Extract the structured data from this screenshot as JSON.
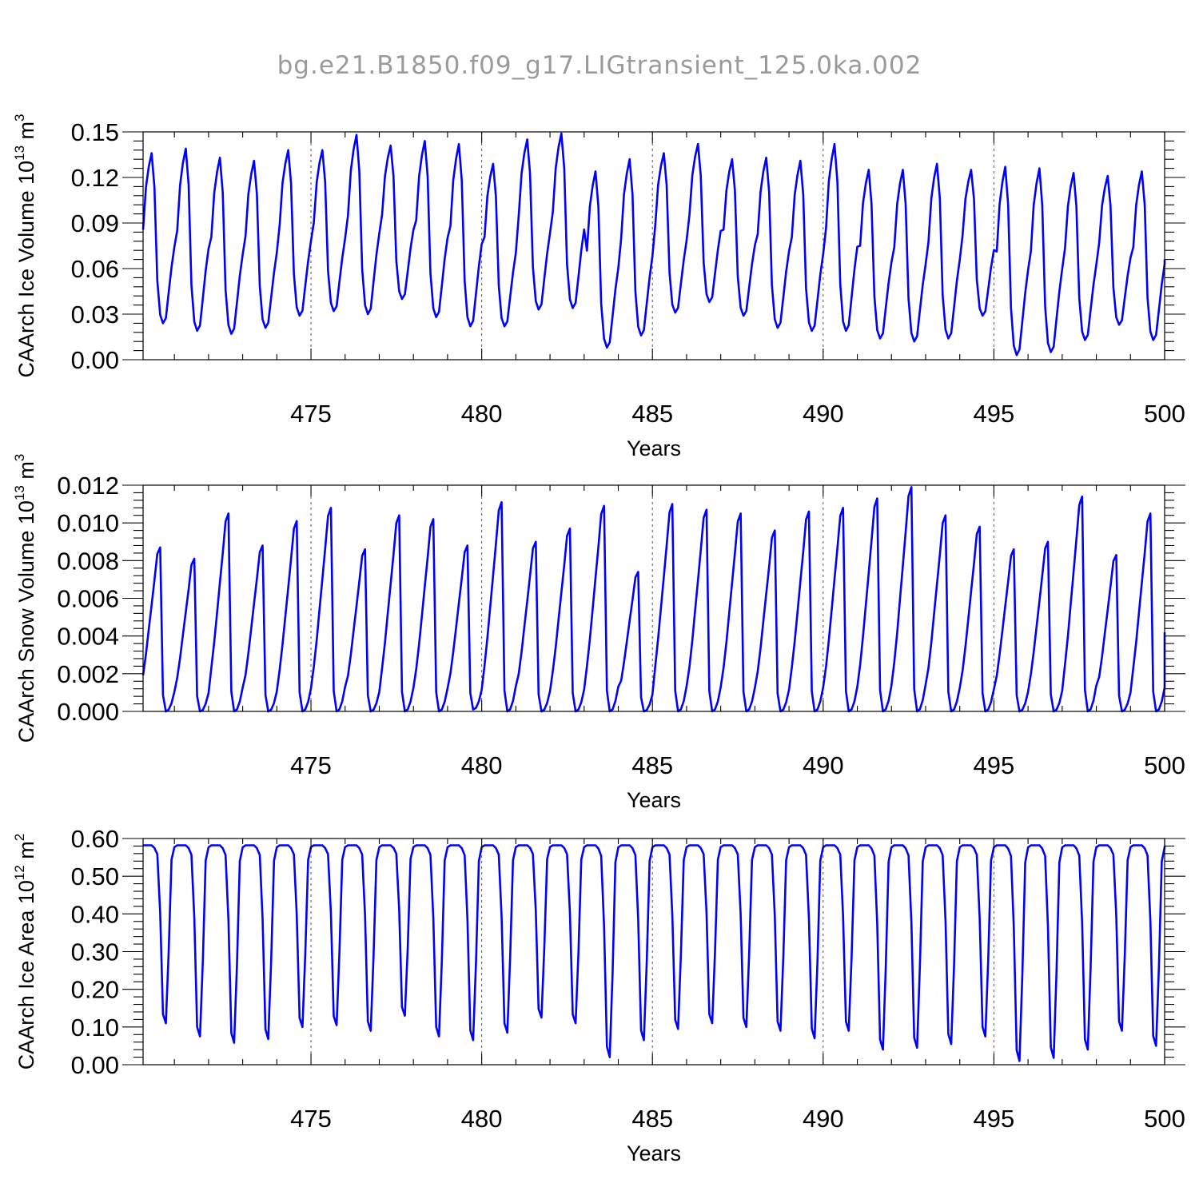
{
  "figure": {
    "title": "bg.e21.B1850.f09_g17.LIGtransient_125.0ka.002"
  },
  "chart_data": [
    {
      "type": "line",
      "id": "ice-volume",
      "title": "",
      "xlabel": "Years",
      "ylabel_main": "CAArch Ice Volume 10",
      "ylabel_sup": "13",
      "ylabel_unit": " m",
      "ylabel_unit_sup": "3",
      "xlim": [
        470.083,
        500.0
      ],
      "ylim": [
        0.0,
        0.15
      ],
      "xticks": [
        475,
        480,
        485,
        490,
        495,
        500
      ],
      "yticks": [
        "0.00",
        "0.03",
        "0.06",
        "0.09",
        "0.12",
        "0.15"
      ],
      "grid_x": "dashed at major ticks",
      "line_color": "#0000ff",
      "series": [
        {
          "name": "",
          "cycle_max": [
            0.136,
            0.139,
            0.133,
            0.131,
            0.138,
            0.138,
            0.148,
            0.141,
            0.144,
            0.142,
            0.129,
            0.145,
            0.149,
            0.124,
            0.132,
            0.136,
            0.142,
            0.132,
            0.133,
            0.131,
            0.142,
            0.125,
            0.125,
            0.129,
            0.125,
            0.127,
            0.126,
            0.123,
            0.121,
            0.124
          ],
          "cycle_min": [
            0.024,
            0.019,
            0.017,
            0.021,
            0.029,
            0.032,
            0.03,
            0.04,
            0.028,
            0.022,
            0.022,
            0.033,
            0.034,
            0.008,
            0.016,
            0.031,
            0.038,
            0.029,
            0.021,
            0.019,
            0.019,
            0.014,
            0.012,
            0.014,
            0.029,
            0.003,
            0.005,
            0.013,
            0.023,
            0.013
          ],
          "end_value": 0.066
        }
      ]
    },
    {
      "type": "line",
      "id": "snow-volume",
      "title": "",
      "xlabel": "Years",
      "ylabel_main": "CAArch Snow Volume 10",
      "ylabel_sup": "13",
      "ylabel_unit": " m",
      "ylabel_unit_sup": "3",
      "xlim": [
        470.083,
        500.0
      ],
      "ylim": [
        0.0,
        0.012
      ],
      "xticks": [
        475,
        480,
        485,
        490,
        495,
        500
      ],
      "yticks": [
        "0.000",
        "0.002",
        "0.004",
        "0.006",
        "0.008",
        "0.010",
        "0.012"
      ],
      "grid_x": "dashed at major ticks",
      "line_color": "#0000ff",
      "series": [
        {
          "name": "",
          "cycle_max": [
            0.0087,
            0.0081,
            0.0105,
            0.0088,
            0.0101,
            0.0108,
            0.0086,
            0.0104,
            0.0102,
            0.0088,
            0.0111,
            0.009,
            0.0097,
            0.0109,
            0.0074,
            0.011,
            0.0107,
            0.0105,
            0.0096,
            0.0106,
            0.0108,
            0.0113,
            0.0119,
            0.0104,
            0.0098,
            0.0086,
            0.009,
            0.0114,
            0.0083,
            0.0105
          ],
          "cycle_min": [
            0.0,
            0.0,
            0.0,
            0.0,
            0.0,
            0.0,
            0.0,
            0.0,
            0.0,
            0.0001,
            0.0,
            0.0,
            0.0,
            0.0,
            0.0,
            0.0,
            0.0,
            0.0,
            0.0,
            0.0,
            0.0,
            0.0,
            0.0,
            0.0,
            0.0,
            0.0,
            0.0,
            0.0,
            0.0,
            0.0
          ],
          "end_value": 0.0042
        }
      ]
    },
    {
      "type": "line",
      "id": "ice-area",
      "title": "",
      "xlabel": "Years",
      "ylabel_main": "CAArch Ice Area 10",
      "ylabel_sup": "12",
      "ylabel_unit": " m",
      "ylabel_unit_sup": "2",
      "xlim": [
        470.083,
        500.0
      ],
      "ylim": [
        0.0,
        0.6
      ],
      "xticks": [
        475,
        480,
        485,
        490,
        495,
        500
      ],
      "yticks": [
        "0.00",
        "0.10",
        "0.20",
        "0.30",
        "0.40",
        "0.50",
        "0.60"
      ],
      "grid_x": "dashed at major ticks",
      "line_color": "#0000ff",
      "series": [
        {
          "name": "",
          "cycle_max": [
            0.582,
            0.582,
            0.582,
            0.582,
            0.582,
            0.582,
            0.582,
            0.582,
            0.582,
            0.582,
            0.582,
            0.582,
            0.582,
            0.582,
            0.582,
            0.582,
            0.582,
            0.582,
            0.582,
            0.582,
            0.582,
            0.582,
            0.582,
            0.582,
            0.582,
            0.582,
            0.582,
            0.582,
            0.582,
            0.582
          ],
          "cycle_min": [
            0.11,
            0.075,
            0.058,
            0.068,
            0.1,
            0.105,
            0.09,
            0.13,
            0.075,
            0.065,
            0.085,
            0.125,
            0.11,
            0.02,
            0.065,
            0.095,
            0.11,
            0.1,
            0.09,
            0.07,
            0.09,
            0.04,
            0.045,
            0.055,
            0.075,
            0.01,
            0.018,
            0.04,
            0.09,
            0.05
          ],
          "end_value": 0.58
        }
      ]
    }
  ]
}
